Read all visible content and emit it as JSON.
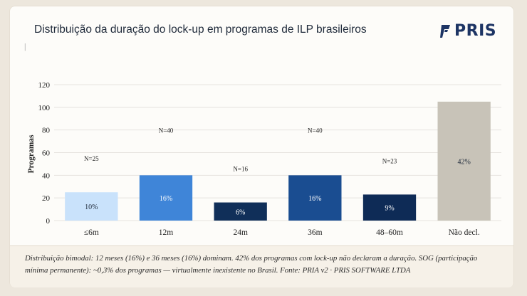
{
  "title": "Distribuição da duração do lock-up em programas de ILP brasileiros",
  "logo": {
    "text": "PRIS",
    "icon": "pris-logo-icon"
  },
  "colors": {
    "background": "#ede7dd",
    "card": "#fdfcf9",
    "caption_bg": "#f6f1e8",
    "logo": "#1d3464"
  },
  "chart_data": {
    "type": "bar",
    "categories": [
      "≤6m",
      "12m",
      "24m",
      "36m",
      "48–60m",
      "Não decl."
    ],
    "values": [
      25,
      40,
      16,
      40,
      23,
      105
    ],
    "bar_labels": [
      "10%",
      "16%",
      "6%",
      "16%",
      "9%",
      "42%"
    ],
    "annotations": [
      "N=25",
      "N=40",
      "N=16",
      "N=40",
      "N=23",
      ""
    ],
    "colors": [
      "#c9e2fb",
      "#3f85d8",
      "#102f59",
      "#1a4d91",
      "#0e2b56",
      "#c8c3b8"
    ],
    "bar_label_colors": [
      "#1f2a3a",
      "#ffffff",
      "#ffffff",
      "#ffffff",
      "#ffffff",
      "#1f2a3a"
    ],
    "ylabel": "Programas",
    "xlabel": "",
    "ylim": [
      0,
      120
    ],
    "yticks": [
      0,
      20,
      40,
      60,
      80,
      100,
      120
    ],
    "grid": true
  },
  "caption": "Distribuição bimodal: 12 meses (16%) e 36 meses (16%) dominam. 42% dos programas com lock-up não declaram a duração. SOG (participação mínima permanente): ~0,3% dos programas — virtualmente inexistente no Brasil. Fonte: PRIA v2 · PRIS SOFTWARE LTDA"
}
